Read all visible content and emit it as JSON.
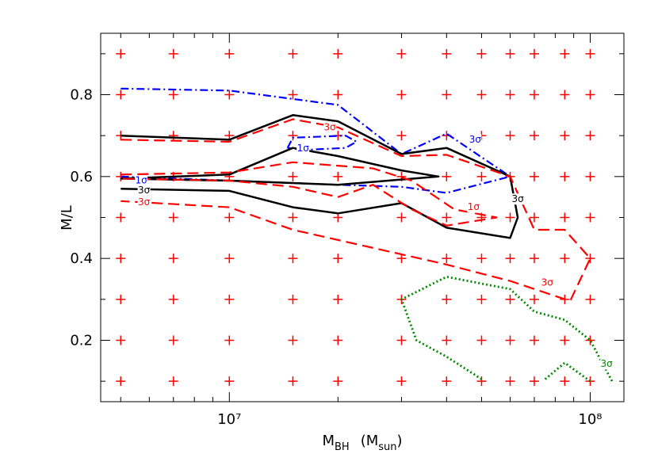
{
  "chart_data": {
    "type": "contour",
    "xlabel": {
      "main": "M",
      "sub": "BH",
      "unit_open": "(M",
      "unit_sub": "sun",
      "unit_close": ")"
    },
    "ylabel": "M/L",
    "xscale": "log",
    "xlim": [
      4400000,
      124000000
    ],
    "ylim": [
      0.05,
      0.95
    ],
    "xticks": [
      {
        "value": 10000000,
        "label": "10⁷"
      },
      {
        "value": 100000000,
        "label": "10⁸"
      }
    ],
    "xminor_ticks": [
      5000000,
      6000000,
      7000000,
      8000000,
      9000000,
      20000000,
      30000000,
      40000000,
      50000000,
      60000000,
      70000000,
      80000000,
      90000000
    ],
    "yticks": [
      0.2,
      0.4,
      0.6,
      0.8
    ],
    "yminor_ticks": [
      0.1,
      0.3,
      0.5,
      0.7,
      0.9
    ],
    "grid_points": {
      "color": "#ff0000",
      "x": [
        5000000,
        7000000,
        10000000,
        15000000,
        20000000,
        30000000,
        40000000,
        50000000,
        60000000,
        70000000,
        85000000,
        100000000
      ],
      "y": [
        0.1,
        0.2,
        0.3,
        0.4,
        0.5,
        0.6,
        0.7,
        0.8,
        0.9
      ]
    },
    "series": [
      {
        "color": "#0000ff",
        "style": "dashdot",
        "x": [
          5000000,
          10000000,
          20000000,
          30000000,
          40000000,
          60000000,
          40000000,
          30000000,
          20000000,
          10000000,
          5000000,
          null,
          14500000,
          15000000,
          21000000,
          22500000,
          21000000,
          16000000,
          14500000
        ],
        "y": [
          0.815,
          0.81,
          0.775,
          0.655,
          0.705,
          0.6,
          0.56,
          0.575,
          0.58,
          0.59,
          0.6,
          null,
          0.67,
          0.695,
          0.7,
          0.685,
          0.67,
          0.665,
          0.67
        ]
      },
      {
        "color": "#000000",
        "style": "solid",
        "x": [
          5000000,
          10000000,
          15000000,
          20000000,
          30000000,
          40000000,
          60000000,
          63000000,
          60000000,
          40000000,
          30000000,
          20000000,
          15000000,
          10000000,
          5000000,
          null,
          5000000,
          10000000,
          15000000,
          20000000,
          30000000,
          38000000,
          20000000,
          10000000,
          5000000
        ],
        "y": [
          0.7,
          0.69,
          0.75,
          0.735,
          0.655,
          0.67,
          0.6,
          0.5,
          0.45,
          0.475,
          0.535,
          0.51,
          0.525,
          0.565,
          0.57,
          null,
          0.595,
          0.605,
          0.67,
          0.65,
          0.615,
          0.6,
          0.58,
          0.59,
          0.595
        ]
      },
      {
        "color": "#ff0000",
        "style": "dashed",
        "x": [
          5000000,
          10000000,
          15000000,
          20000000,
          30000000,
          40000000,
          60000000,
          70000000,
          85000000,
          100000000,
          88000000,
          60000000,
          40000000,
          30000000,
          15000000,
          10000000,
          5000000,
          null,
          5000000,
          10000000,
          15000000,
          25000000,
          32000000,
          42000000,
          55000000,
          40000000,
          32000000,
          25000000,
          20000000,
          15000000,
          10000000,
          5000000
        ],
        "y": [
          0.69,
          0.685,
          0.74,
          0.72,
          0.65,
          0.653,
          0.6,
          0.47,
          0.47,
          0.4,
          0.296,
          0.345,
          0.385,
          0.41,
          0.47,
          0.525,
          0.54,
          null,
          0.605,
          0.61,
          0.635,
          0.62,
          0.59,
          0.52,
          0.5,
          0.48,
          0.52,
          0.58,
          0.55,
          0.575,
          0.59,
          0.595
        ]
      },
      {
        "color": "#008800",
        "style": "dotted",
        "x": [
          50000000,
          40000000,
          33000000,
          30000000,
          40000000,
          60000000,
          70000000,
          85000000,
          100000000,
          115000000,
          null,
          75000000,
          85000000,
          100000000
        ],
        "y": [
          0.105,
          0.16,
          0.2,
          0.3,
          0.355,
          0.325,
          0.27,
          0.25,
          0.2,
          0.1,
          null,
          0.105,
          0.145,
          0.1
        ]
      }
    ],
    "annotations": [
      {
        "text": "1σ",
        "x": 16000000,
        "y": 0.668,
        "color": "#0000ff"
      },
      {
        "text": "1σ",
        "x": 5700000,
        "y": 0.59,
        "color": "#0000ff"
      },
      {
        "text": "3σ",
        "x": 48000000,
        "y": 0.69,
        "color": "#0000ff"
      },
      {
        "text": "3σ",
        "x": 5800000,
        "y": 0.566,
        "color": "#000000"
      },
      {
        "text": "3σ",
        "x": 63000000,
        "y": 0.545,
        "color": "#000000"
      },
      {
        "text": "3σ",
        "x": 19000000,
        "y": 0.72,
        "color": "#ff0000"
      },
      {
        "text": "1σ",
        "x": 47500000,
        "y": 0.525,
        "color": "#ff0000"
      },
      {
        "text": "3σ",
        "x": 5800000,
        "y": 0.537,
        "color": "#ff0000"
      },
      {
        "text": "3σ",
        "x": 76000000,
        "y": 0.34,
        "color": "#ff0000"
      },
      {
        "text": "3σ",
        "x": 111000000,
        "y": 0.142,
        "color": "#008800"
      }
    ]
  }
}
